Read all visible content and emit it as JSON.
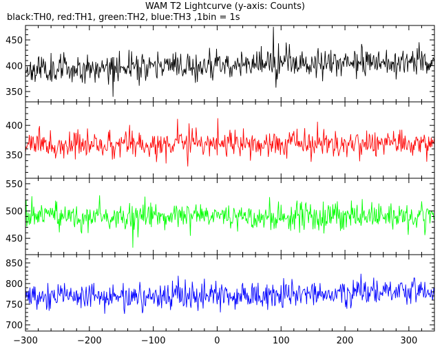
{
  "title": "WAM T2 Lightcurve (y-axis: Counts)",
  "subtitle": "black:TH0, red:TH1, green:TH2, blue:TH3 ,1bin = 1s",
  "colors": {
    "TH0": "#000000",
    "TH1": "#ff0000",
    "TH2": "#00ff00",
    "TH3": "#0000ff"
  },
  "chart_data": [
    {
      "type": "line",
      "series_name": "TH0",
      "color": "#000000",
      "xlim": [
        -300,
        340
      ],
      "ylim": [
        330,
        478
      ],
      "yticks": [
        350,
        400,
        450
      ],
      "yticklabels": [
        "350",
        "400",
        "450"
      ],
      "baseline": {
        "x": [
          -300,
          -200,
          -100,
          0,
          100,
          200,
          340
        ],
        "y": [
          393,
          396,
          399,
          402,
          405,
          407,
          409
        ]
      },
      "spread": 24,
      "seed": 11
    },
    {
      "type": "line",
      "series_name": "TH1",
      "color": "#ff0000",
      "xlim": [
        -300,
        340
      ],
      "ylim": [
        310,
        440
      ],
      "yticks": [
        350,
        400
      ],
      "yticklabels": [
        "350",
        "400"
      ],
      "baseline": {
        "x": [
          -300,
          -200,
          -100,
          0,
          100,
          200,
          340
        ],
        "y": [
          366,
          367,
          367,
          368,
          368,
          369,
          370
        ]
      },
      "spread": 20,
      "seed": 23
    },
    {
      "type": "line",
      "series_name": "TH2",
      "color": "#00ff00",
      "xlim": [
        -300,
        340
      ],
      "ylim": [
        420,
        560
      ],
      "yticks": [
        450,
        500,
        550
      ],
      "yticklabels": [
        "450",
        "500",
        "550"
      ],
      "baseline": {
        "x": [
          -300,
          -200,
          -100,
          0,
          100,
          200,
          340
        ],
        "y": [
          490,
          489,
          490,
          491,
          490,
          491,
          492
        ]
      },
      "spread": 22,
      "seed": 37
    },
    {
      "type": "line",
      "series_name": "TH3",
      "color": "#0000ff",
      "xlim": [
        -300,
        340
      ],
      "ylim": [
        685,
        870
      ],
      "yticks": [
        700,
        750,
        800,
        850
      ],
      "yticklabels": [
        "700",
        "750",
        "800",
        "850"
      ],
      "baseline": {
        "x": [
          -300,
          -200,
          -100,
          0,
          100,
          200,
          340
        ],
        "y": [
          770,
          768,
          769,
          772,
          775,
          778,
          781
        ]
      },
      "spread": 30,
      "seed": 53
    }
  ],
  "xaxis": {
    "ticks": [
      -300,
      -200,
      -100,
      0,
      100,
      200,
      300
    ],
    "ticklabels": [
      "−300",
      "−200",
      "−100",
      "0",
      "100",
      "200",
      "300"
    ]
  }
}
